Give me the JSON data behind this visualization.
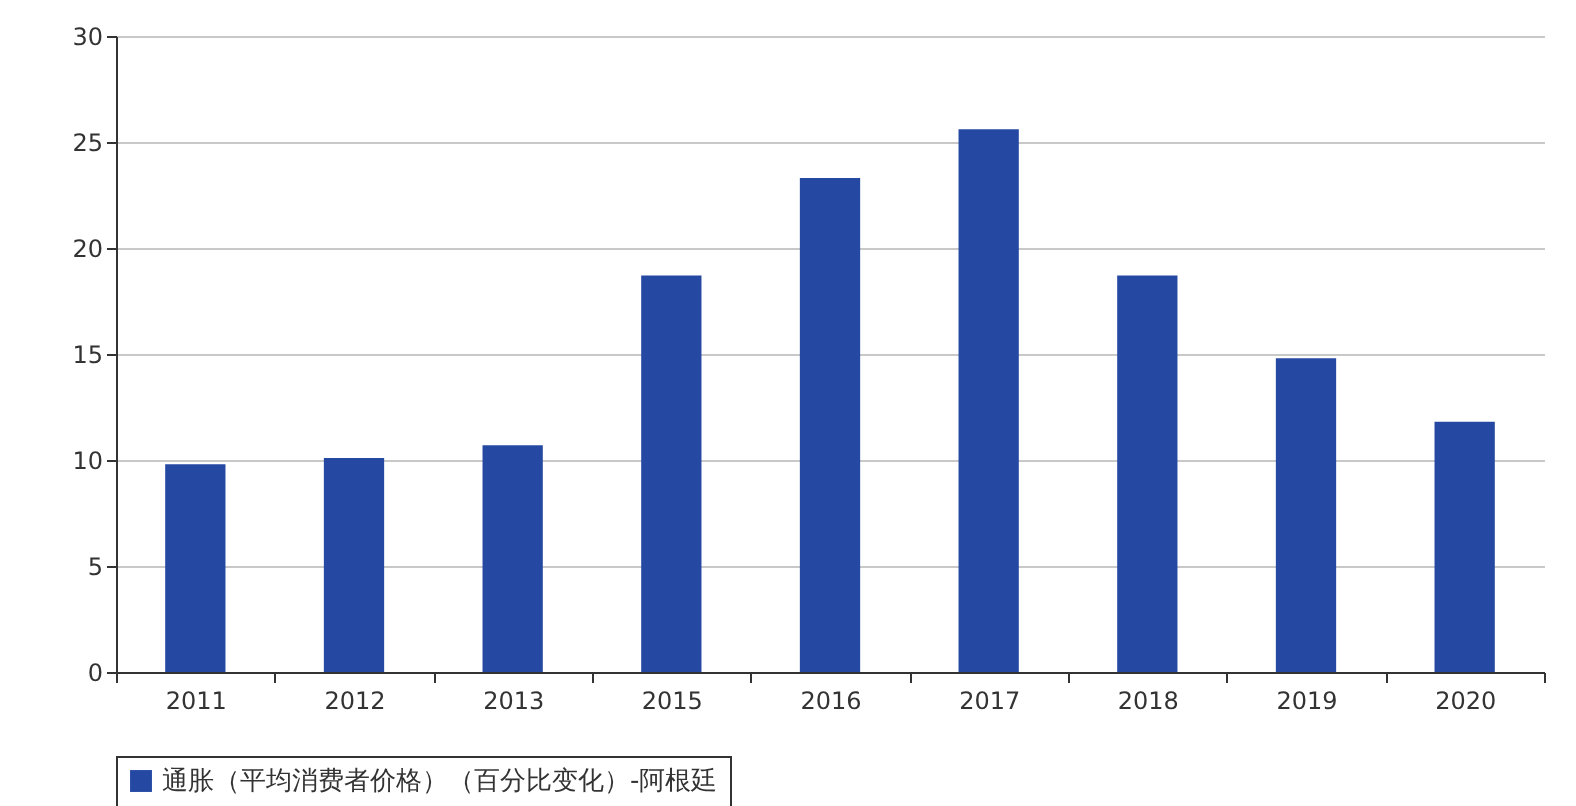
{
  "chart_data": {
    "type": "bar",
    "categories": [
      "2011",
      "2012",
      "2013",
      "2015",
      "2016",
      "2017",
      "2018",
      "2019",
      "2020"
    ],
    "series": [
      {
        "name": "通胀（平均消费者价格）（百分比变化）-阿根廷",
        "color": "#2549a3",
        "values": [
          9.8,
          10.1,
          10.7,
          18.7,
          23.3,
          25.6,
          18.7,
          14.8,
          11.8
        ]
      }
    ],
    "ylim": [
      0,
      30
    ],
    "yticks": [
      0,
      5,
      10,
      15,
      20,
      25,
      30
    ],
    "grid": "y",
    "legend": "bottom"
  }
}
